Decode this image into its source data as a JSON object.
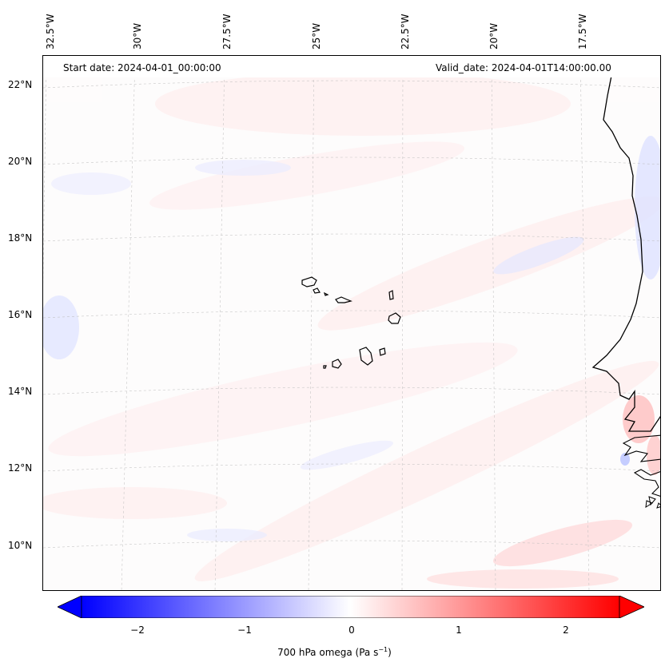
{
  "header": {
    "start_date": "Start date: 2024-04-01_00:00:00",
    "valid_date": "Valid_date: 2024-04-01T14:00:00.00"
  },
  "map": {
    "lon_labels": [
      "32.5°W",
      "30°W",
      "27.5°W",
      "25°W",
      "22.5°W",
      "20°W",
      "17.5°W"
    ],
    "lat_labels": [
      "22°N",
      "20°N",
      "18°N",
      "16°N",
      "14°N",
      "12°N",
      "10°N"
    ],
    "field": "700 hPa omega",
    "colormap": "bwr"
  },
  "colorbar": {
    "ticks": [
      "−2",
      "−1",
      "0",
      "1",
      "2"
    ],
    "title_main": "700 hPa omega (Pa s",
    "title_sup": "−1",
    "title_end": ")",
    "min_color": "#0000ff",
    "mid_color": "#ffffff",
    "max_color": "#ff0000",
    "extend": "both"
  }
}
